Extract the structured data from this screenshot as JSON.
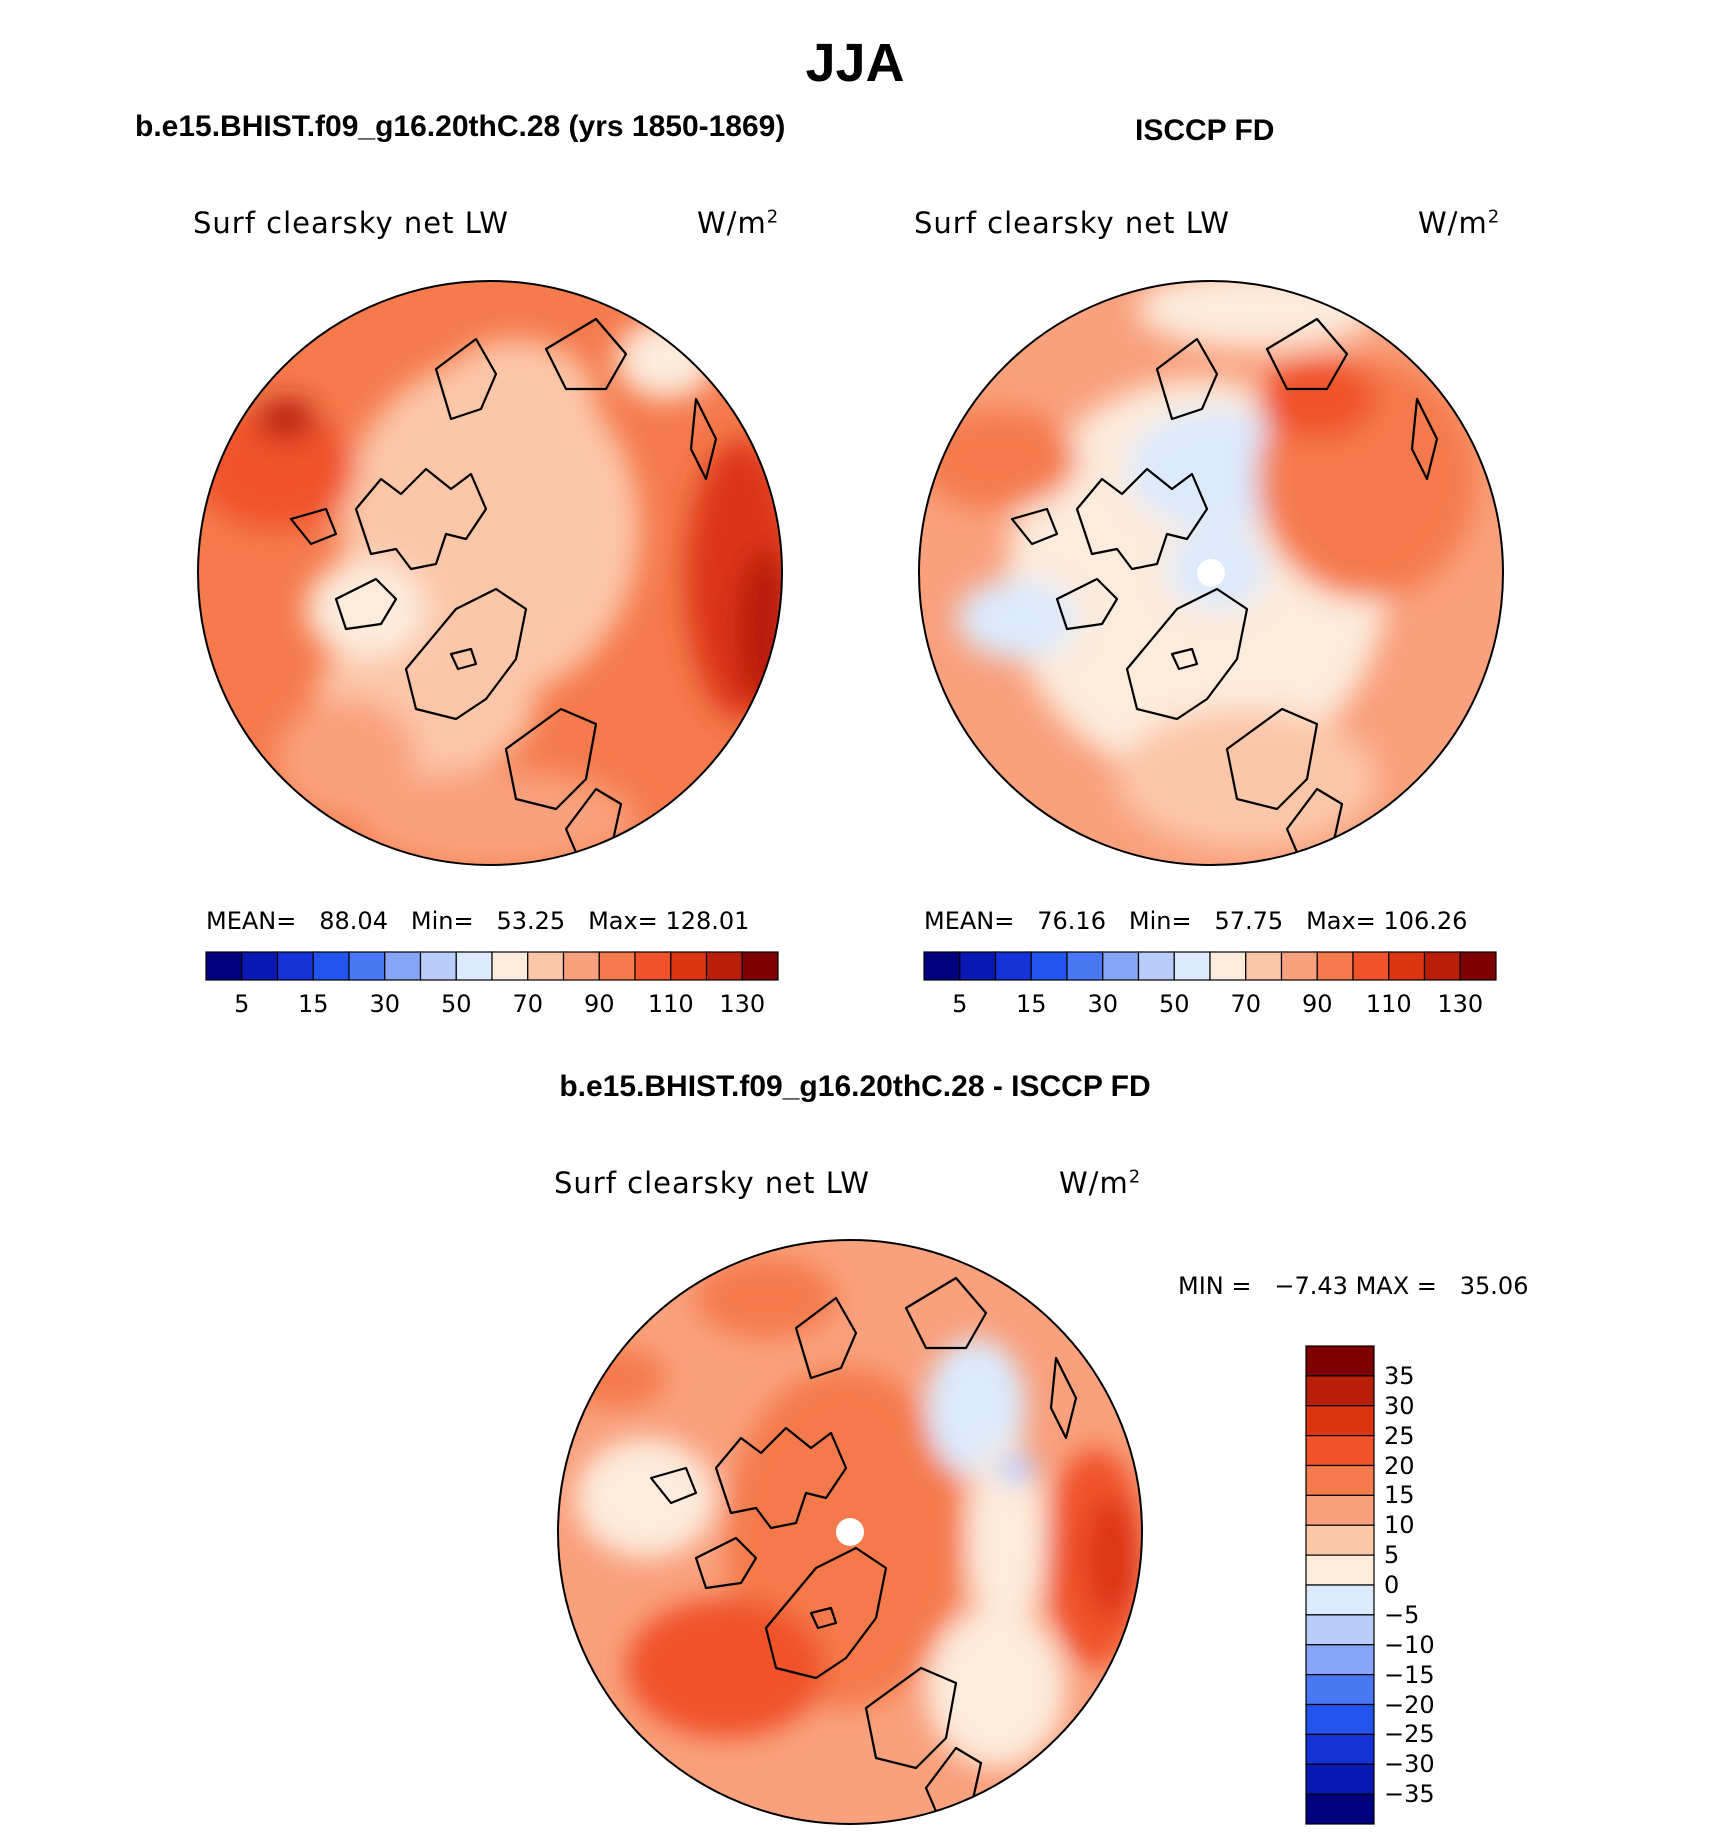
{
  "title": "JJA",
  "panels": {
    "left": {
      "title": "b.e15.BHIST.f09_g16.20thC.28 (yrs 1850-1869)",
      "var_label": "Surf clearsky net LW",
      "units": "W/m",
      "units_sup": "2",
      "mean_label": "MEAN=",
      "mean": "88.04",
      "min_label": "Min=",
      "min": "53.25",
      "max_label": "Max=",
      "max": "128.01"
    },
    "right": {
      "title": "ISCCP FD",
      "var_label": "Surf clearsky net LW",
      "units": "W/m",
      "units_sup": "2",
      "mean_label": "MEAN=",
      "mean": "76.16",
      "min_label": "Min=",
      "min": "57.75",
      "max_label": "Max=",
      "max": "106.26"
    },
    "diff": {
      "title": "b.e15.BHIST.f09_g16.20thC.28 - ISCCP FD",
      "var_label": "Surf clearsky net LW",
      "units": "W/m",
      "units_sup": "2",
      "min_label": "MIN =",
      "min": "−7.43",
      "max_label": "MAX =",
      "max": "35.06"
    }
  },
  "colorbar_abs": {
    "colors": [
      "#00007f",
      "#0a19b3",
      "#1432d6",
      "#2255f0",
      "#4a78f5",
      "#86a5f7",
      "#b9cdfa",
      "#dbeafd",
      "#fdebdc",
      "#fcc6a8",
      "#f9a07c",
      "#f57a4c",
      "#f0532c",
      "#dc3512",
      "#b81e08",
      "#7f0000"
    ],
    "ticks": [
      "5",
      "15",
      "30",
      "50",
      "70",
      "90",
      "110",
      "130"
    ]
  },
  "colorbar_diff": {
    "colors": [
      "#7f0000",
      "#b81e08",
      "#dc3512",
      "#f0532c",
      "#f57a4c",
      "#f9a07c",
      "#fcc6a8",
      "#fdebdc",
      "#dbeafd",
      "#b9cdfa",
      "#86a5f7",
      "#4a78f5",
      "#2255f0",
      "#1432d6",
      "#0a19b3",
      "#00007f"
    ],
    "ticks": [
      "35",
      "30",
      "25",
      "20",
      "15",
      "10",
      "5",
      "0",
      "−5",
      "−10",
      "−15",
      "−20",
      "−25",
      "−30",
      "−35"
    ]
  }
}
